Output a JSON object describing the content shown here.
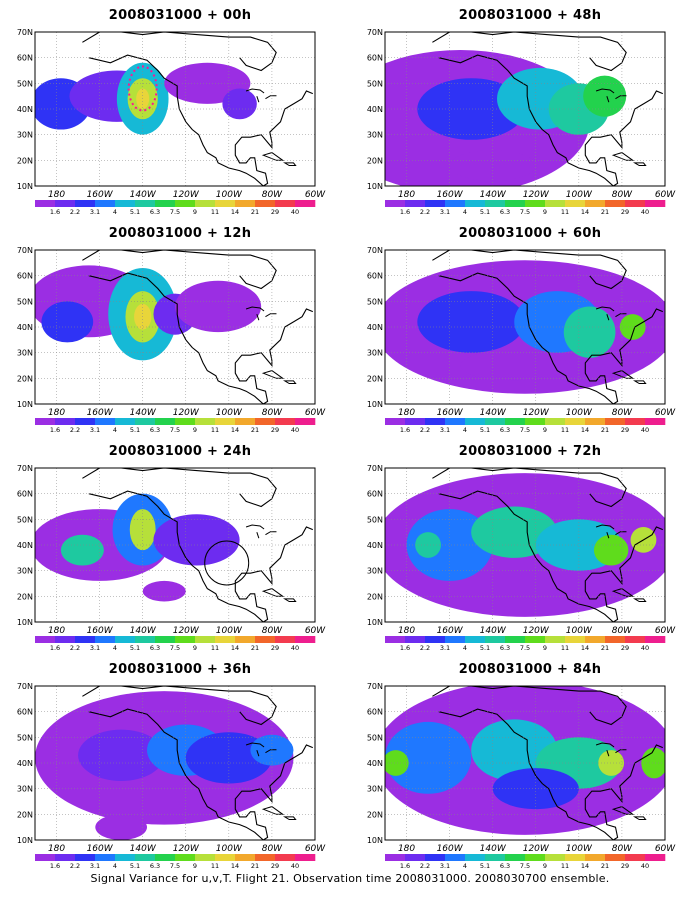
{
  "footer": "Signal Variance for u,v,T. Flight 21. Observation time 2008031000. 2008030700 ensemble.",
  "axes": {
    "y_labels": [
      "70N",
      "60N",
      "50N",
      "40N",
      "30N",
      "20N",
      "10N"
    ],
    "x_labels": [
      "180",
      "160W",
      "140W",
      "120W",
      "100W",
      "80W",
      "60W"
    ]
  },
  "colorbar": {
    "labels": [
      "1.6",
      "2.2",
      "3.1",
      "4",
      "5.1",
      "6.3",
      "7.5",
      "9",
      "11",
      "14",
      "21",
      "29",
      "40"
    ],
    "colors": [
      "#9b2ee3",
      "#6d2cf0",
      "#2f33f5",
      "#1f78ff",
      "#16b9d6",
      "#1ec9a0",
      "#23d24d",
      "#5fdc1c",
      "#b6e03a",
      "#e8d53a",
      "#f2a82c",
      "#f2662a",
      "#f33b4f",
      "#ee1e8e"
    ]
  },
  "panels": [
    {
      "title": "2008031000 + 00h"
    },
    {
      "title": "2008031000 + 48h"
    },
    {
      "title": "2008031000 + 12h"
    },
    {
      "title": "2008031000 + 60h"
    },
    {
      "title": "2008031000 + 24h"
    },
    {
      "title": "2008031000 + 72h"
    },
    {
      "title": "2008031000 + 36h"
    },
    {
      "title": "2008031000 + 84h"
    }
  ]
}
